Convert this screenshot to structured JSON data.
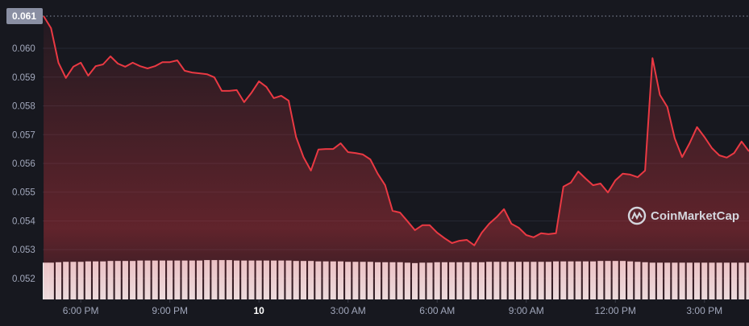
{
  "chart_data": {
    "type": "area",
    "x": [
      16.75,
      17,
      17.25,
      17.5,
      17.75,
      18,
      18.25,
      18.5,
      18.75,
      19,
      19.25,
      19.5,
      19.75,
      20,
      20.25,
      20.5,
      20.75,
      21,
      21.25,
      21.5,
      21.75,
      22,
      22.25,
      22.5,
      22.75,
      23,
      23.25,
      23.5,
      23.75,
      24,
      24.25,
      24.5,
      24.75,
      25,
      25.25,
      25.5,
      25.75,
      26,
      26.25,
      26.5,
      26.75,
      27,
      27.25,
      27.5,
      27.75,
      28,
      28.25,
      28.5,
      28.75,
      29,
      29.25,
      29.5,
      29.75,
      30,
      30.25,
      30.5,
      30.75,
      31,
      31.25,
      31.5,
      31.75,
      32,
      32.25,
      32.5,
      32.75,
      33,
      33.25,
      33.5,
      33.75,
      34,
      34.25,
      34.5,
      34.75,
      35,
      35.25,
      35.5,
      35.75,
      36,
      36.25,
      36.5,
      36.75,
      37,
      37.25,
      37.5,
      37.75,
      38,
      38.25,
      38.5,
      38.75,
      39,
      39.25,
      39.5,
      39.75,
      40,
      40.25,
      40.5
    ],
    "series": [
      {
        "color": "#ea3943",
        "values": [
          0.06112,
          0.0607,
          0.0595,
          0.05897,
          0.05936,
          0.0595,
          0.05905,
          0.05938,
          0.05944,
          0.05972,
          0.05947,
          0.05936,
          0.0595,
          0.05938,
          0.0593,
          0.05938,
          0.05952,
          0.05952,
          0.05958,
          0.05922,
          0.05916,
          0.05913,
          0.0591,
          0.05899,
          0.05852,
          0.05852,
          0.05855,
          0.05813,
          0.05846,
          0.05885,
          0.05866,
          0.05827,
          0.05835,
          0.05818,
          0.05692,
          0.05622,
          0.05575,
          0.05648,
          0.0565,
          0.0565,
          0.0567,
          0.05639,
          0.05636,
          0.05631,
          0.05614,
          0.05564,
          0.05524,
          0.05435,
          0.05429,
          0.05399,
          0.05368,
          0.05385,
          0.05385,
          0.05359,
          0.0534,
          0.05323,
          0.05331,
          0.05334,
          0.05315,
          0.05359,
          0.0539,
          0.05413,
          0.05441,
          0.0539,
          0.05376,
          0.05351,
          0.05343,
          0.05357,
          0.05354,
          0.05357,
          0.05519,
          0.05533,
          0.05572,
          0.05547,
          0.05524,
          0.0553,
          0.05499,
          0.05541,
          0.05564,
          0.05561,
          0.05552,
          0.05575,
          0.05966,
          0.05838,
          0.05796,
          0.05687,
          0.05622,
          0.0567,
          0.05726,
          0.05692,
          0.05653,
          0.05628,
          0.0562,
          0.05636,
          0.05676,
          0.05642
        ]
      }
    ],
    "volume": {
      "color": "#ffffff",
      "ylim": [
        0,
        700
      ],
      "values": [
        86,
        86,
        87,
        88,
        88,
        88,
        89,
        89,
        89,
        90,
        90,
        90,
        90,
        91,
        91,
        91,
        91,
        91,
        91,
        91,
        91,
        91,
        92,
        92,
        92,
        92,
        91,
        91,
        91,
        91,
        91,
        91,
        91,
        91,
        90,
        90,
        90,
        89,
        89,
        89,
        89,
        88,
        88,
        88,
        88,
        87,
        87,
        87,
        87,
        86,
        85,
        86,
        86,
        87,
        87,
        87,
        87,
        87,
        87,
        87,
        88,
        88,
        88,
        88,
        88,
        88,
        88,
        88,
        88,
        89,
        89,
        89,
        89,
        89,
        89,
        90,
        90,
        90,
        90,
        89,
        88,
        87,
        86,
        86,
        86,
        86,
        86,
        86,
        86,
        86,
        86,
        86,
        86,
        86,
        86,
        86
      ]
    },
    "xlim": [
      16.72,
      40.5
    ],
    "ylim": [
      0.05127,
      0.06168
    ],
    "yticks": [
      0.052,
      0.053,
      0.054,
      0.055,
      0.056,
      0.057,
      0.058,
      0.059,
      {
        "value": 0.06,
        "label": "0.060"
      }
    ],
    "xticks": [
      {
        "value": 18,
        "label": "6:00 PM"
      },
      {
        "value": 21,
        "label": "9:00 PM"
      },
      {
        "value": 24,
        "label": "10"
      },
      {
        "value": 27,
        "label": "3:00 AM"
      },
      {
        "value": 30,
        "label": "6:00 AM"
      },
      {
        "value": 33,
        "label": "9:00 AM"
      },
      {
        "value": 36,
        "label": "12:00 PM"
      },
      {
        "value": 39,
        "label": "3:00 PM"
      }
    ],
    "high_marker": {
      "value": 0.06112,
      "label": "0.061"
    },
    "watermark": "CoinMarketCap",
    "grid": true
  }
}
